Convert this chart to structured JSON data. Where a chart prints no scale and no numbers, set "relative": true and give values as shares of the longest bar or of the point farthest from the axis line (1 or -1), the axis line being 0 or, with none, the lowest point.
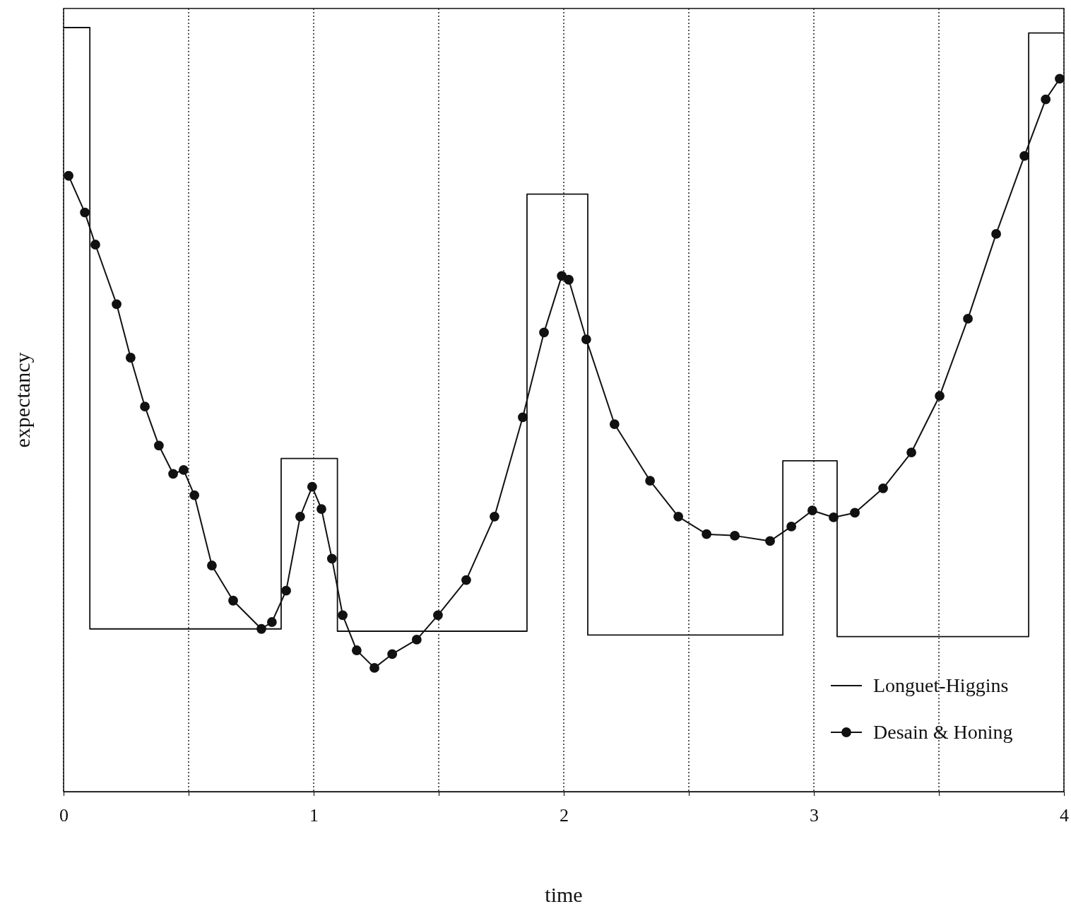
{
  "chart_data": {
    "type": "line",
    "xlabel": "time",
    "ylabel": "expectancy",
    "relative": true,
    "xlim": [
      0,
      4
    ],
    "xticks": [
      0,
      {
        "value": 0.5,
        "label": null
      },
      1,
      {
        "value": 1.5,
        "label": null
      },
      2,
      {
        "value": 2.5,
        "label": null
      },
      3,
      {
        "value": 3.5,
        "label": null
      },
      4
    ],
    "grid": "x",
    "legend": "bottom right",
    "series": [
      {
        "name": "Longuet-Higgins",
        "type": "step",
        "color": "#111111",
        "marker": "none",
        "x": [
          0,
          0.105,
          0.87,
          1.095,
          1.853,
          2.096,
          2.876,
          3.093,
          3.859,
          4
        ],
        "values": [
          1,
          0.213,
          0.436,
          0.21,
          0.782,
          0.205,
          0.433,
          0.203,
          0.993,
          0.993
        ]
      },
      {
        "name": "Desain & Honing",
        "color": "#111111",
        "marker": "circle",
        "x": [
          0.02,
          0.085,
          0.127,
          0.212,
          0.268,
          0.325,
          0.381,
          0.438,
          0.48,
          0.523,
          0.593,
          0.678,
          0.791,
          0.833,
          0.89,
          0.946,
          0.994,
          1.031,
          1.073,
          1.116,
          1.172,
          1.243,
          1.314,
          1.412,
          1.497,
          1.61,
          1.723,
          1.836,
          1.921,
          1.992,
          2.02,
          2.09,
          2.203,
          2.345,
          2.458,
          2.571,
          2.684,
          2.825,
          2.91,
          2.994,
          3.079,
          3.164,
          3.277,
          3.39,
          3.503,
          3.616,
          3.729,
          3.842,
          3.927,
          3.983
        ],
        "values": [
          0.806,
          0.758,
          0.716,
          0.638,
          0.568,
          0.504,
          0.453,
          0.416,
          0.421,
          0.388,
          0.296,
          0.25,
          0.213,
          0.222,
          0.263,
          0.36,
          0.399,
          0.37,
          0.305,
          0.231,
          0.185,
          0.162,
          0.18,
          0.199,
          0.231,
          0.277,
          0.36,
          0.49,
          0.601,
          0.675,
          0.67,
          0.592,
          0.481,
          0.407,
          0.36,
          0.337,
          0.335,
          0.328,
          0.347,
          0.368,
          0.359,
          0.365,
          0.397,
          0.444,
          0.518,
          0.619,
          0.73,
          0.832,
          0.906,
          0.933
        ]
      }
    ]
  }
}
